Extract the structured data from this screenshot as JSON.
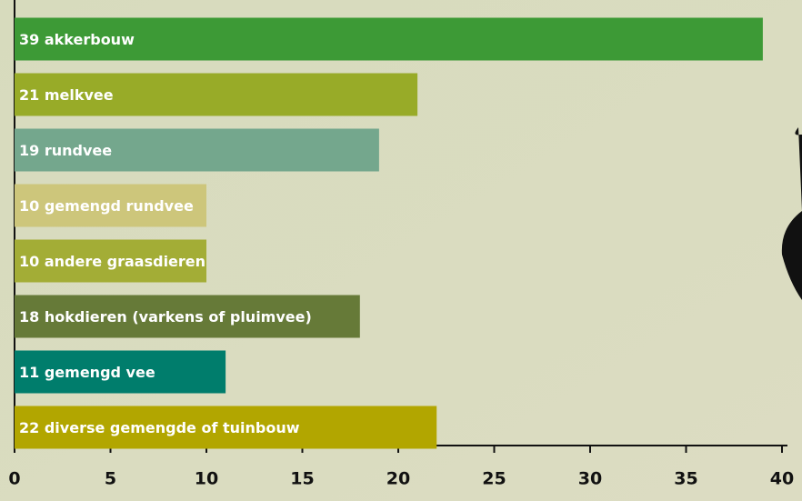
{
  "chart_data": {
    "type": "bar",
    "orientation": "horizontal",
    "categories": [
      "akkerbouw",
      "melkvee",
      "rundvee",
      "gemengd rundvee",
      "andere graasdieren",
      "hokdieren (varkens of pluimvee)",
      "gemengd vee",
      "diverse gemengde of tuinbouw"
    ],
    "values": [
      39,
      21,
      19,
      10,
      10,
      18,
      11,
      22
    ],
    "colors": [
      "#3d9a36",
      "#98ab28",
      "#74a78d",
      "#cdc67b",
      "#a3ad36",
      "#667a38",
      "#007d6c",
      "#b2a600"
    ],
    "xlim": [
      0,
      40
    ],
    "xticks": [
      0,
      5,
      10,
      15,
      20,
      25,
      30,
      35,
      40
    ]
  }
}
